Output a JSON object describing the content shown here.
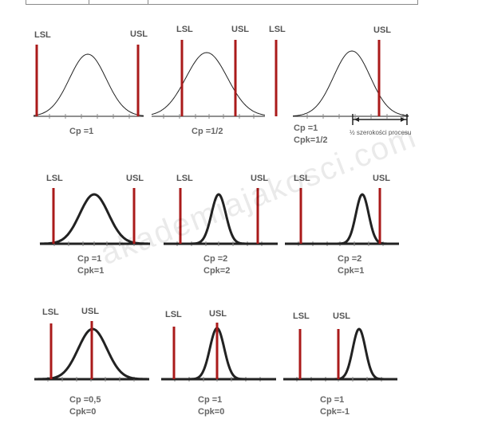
{
  "watermark": "akademiajakosci.com",
  "colors": {
    "spec_limit": "#aa1a1a",
    "curve": "#222222",
    "text": "#555555"
  },
  "spec_labels": {
    "lsl": "LSL",
    "usl": "USL"
  },
  "note_half_width": "½ szerokości procesu",
  "chart_data": [
    {
      "type": "diagram",
      "row": 1,
      "panel": 1,
      "cp": "Cp =1",
      "cpk": ""
    },
    {
      "type": "diagram",
      "row": 1,
      "panel": 2,
      "cp": "Cp =1/2",
      "cpk": ""
    },
    {
      "type": "diagram",
      "row": 1,
      "panel": 3,
      "cp": "Cp =1",
      "cpk": "Cpk=1/2"
    },
    {
      "type": "diagram",
      "row": 2,
      "panel": 1,
      "cp": "Cp =1",
      "cpk": "Cpk=1"
    },
    {
      "type": "diagram",
      "row": 2,
      "panel": 2,
      "cp": "Cp =2",
      "cpk": "Cpk=2"
    },
    {
      "type": "diagram",
      "row": 2,
      "panel": 3,
      "cp": "Cp =2",
      "cpk": "Cpk=1"
    },
    {
      "type": "diagram",
      "row": 3,
      "panel": 1,
      "cp": "Cp =0,5",
      "cpk": "Cpk=0"
    },
    {
      "type": "diagram",
      "row": 3,
      "panel": 2,
      "cp": "Cp =1",
      "cpk": "Cpk=0"
    },
    {
      "type": "diagram",
      "row": 3,
      "panel": 3,
      "cp": "Cp =1",
      "cpk": "Cpk=-1"
    }
  ]
}
